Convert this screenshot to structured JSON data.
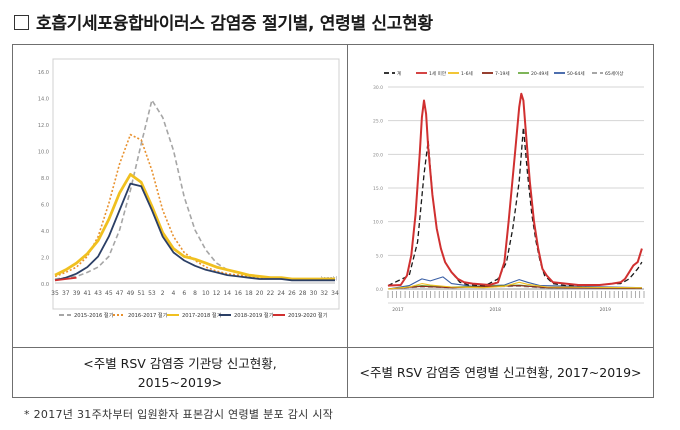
{
  "title": "호흡기세포융합바이러스 감염증 절기별, 연령별 신고현황",
  "captions": {
    "left_line1": "<주별 RSV 감염증 기관당 신고현황,",
    "left_line2": "2015~2019>",
    "right": "<주별 RSV 감염증 연령별 신고현황, 2017~2019>"
  },
  "footnote": "* 2017년 31주차부터 입원환자 표본감시 연령별 분포 감시 시작",
  "colors": {
    "border": "#6f6f6f"
  },
  "chart_data": [
    {
      "type": "line",
      "categories": [
        "35",
        "37",
        "39",
        "41",
        "43",
        "45",
        "47",
        "49",
        "51",
        "53",
        "2",
        "4",
        "6",
        "8",
        "10",
        "12",
        "14",
        "16",
        "18",
        "20",
        "22",
        "24",
        "26",
        "28",
        "30",
        "32",
        "34"
      ],
      "yticks": [
        "16.0",
        "14.0",
        "12.0",
        "10.0",
        "8.0",
        "6.0",
        "4.0",
        "2.0",
        "0.0"
      ],
      "ylim": [
        0,
        16
      ],
      "xunit": "(week)",
      "series": [
        {
          "name": "2015-2016 절기",
          "color": "#a6a6a6",
          "style": "dashed",
          "values": [
            0.3,
            0.4,
            0.5,
            0.8,
            1.2,
            2.0,
            4.0,
            7.0,
            10.5,
            13.8,
            12.5,
            10.0,
            6.5,
            4.0,
            2.5,
            1.5,
            1.0,
            0.8,
            0.6,
            0.5,
            0.4,
            0.3,
            0.3,
            0.3,
            0.3,
            0.3,
            0.3
          ]
        },
        {
          "name": "2016-2017 절기",
          "color": "#e8912e",
          "style": "dotted",
          "values": [
            0.5,
            0.8,
            1.2,
            2.0,
            3.5,
            6.0,
            9.0,
            11.2,
            10.8,
            8.5,
            5.5,
            3.5,
            2.3,
            1.7,
            1.2,
            0.9,
            0.7,
            0.6,
            0.5,
            0.4,
            0.4,
            0.3,
            0.3,
            0.3,
            0.3,
            0.3,
            0.3
          ]
        },
        {
          "name": "2017-2018 절기",
          "color": "#f0c020",
          "style": "solid",
          "values": [
            0.6,
            1.0,
            1.5,
            2.2,
            3.2,
            4.8,
            6.8,
            8.2,
            7.6,
            5.8,
            3.8,
            2.6,
            2.0,
            1.8,
            1.5,
            1.2,
            1.0,
            0.8,
            0.6,
            0.5,
            0.4,
            0.4,
            0.3,
            0.3,
            0.3,
            0.3,
            0.3
          ]
        },
        {
          "name": "2018-2019 절기",
          "color": "#2b3f66",
          "style": "solid",
          "values": [
            0.2,
            0.4,
            0.7,
            1.2,
            2.0,
            3.5,
            5.5,
            7.5,
            7.3,
            5.5,
            3.5,
            2.3,
            1.7,
            1.3,
            1.0,
            0.8,
            0.6,
            0.5,
            0.4,
            0.3,
            0.3,
            0.3,
            0.2,
            0.2,
            0.2,
            0.2,
            0.2
          ]
        },
        {
          "name": "2019-2020 절기",
          "color": "#d03030",
          "style": "solid",
          "values": [
            0.2,
            0.3,
            0.4,
            null,
            null,
            null,
            null,
            null,
            null,
            null,
            null,
            null,
            null,
            null,
            null,
            null,
            null,
            null,
            null,
            null,
            null,
            null,
            null,
            null,
            null,
            null,
            null
          ]
        }
      ]
    },
    {
      "type": "line",
      "xlim": [
        0,
        121
      ],
      "yticks": [
        "30.0",
        "25.0",
        "20.0",
        "15.0",
        "10.0",
        "5.0",
        "0.0"
      ],
      "ylim": [
        0,
        30
      ],
      "year_labels": [
        {
          "label": "2017",
          "x": 2
        },
        {
          "label": "2018",
          "x": 48
        },
        {
          "label": "2019",
          "x": 100
        }
      ],
      "series": [
        {
          "name": "계",
          "color": "#1a1a1a",
          "style": "dashed",
          "points": [
            [
              0,
              0.5
            ],
            [
              10,
              2
            ],
            [
              14,
              7
            ],
            [
              17,
              17
            ],
            [
              19,
              22
            ],
            [
              21,
              14
            ],
            [
              23,
              9
            ],
            [
              25,
              6
            ],
            [
              27,
              4
            ],
            [
              30,
              2.5
            ],
            [
              34,
              1
            ],
            [
              38,
              0.6
            ],
            [
              46,
              0.5
            ],
            [
              52,
              1.5
            ],
            [
              56,
              4
            ],
            [
              59,
              9
            ],
            [
              62,
              16
            ],
            [
              64,
              24
            ],
            [
              66,
              17
            ],
            [
              68,
              11
            ],
            [
              70,
              7
            ],
            [
              72,
              4
            ],
            [
              74,
              2
            ],
            [
              78,
              0.8
            ],
            [
              84,
              0.5
            ],
            [
              90,
              0.5
            ],
            [
              100,
              0.6
            ],
            [
              106,
              0.8
            ],
            [
              110,
              0.8
            ],
            [
              114,
              1.5
            ],
            [
              118,
              3
            ],
            [
              120,
              4
            ]
          ]
        },
        {
          "name": "1세 미만",
          "color": "#d03030",
          "style": "solid",
          "points": [
            [
              0,
              0.5
            ],
            [
              6,
              0.6
            ],
            [
              9,
              2
            ],
            [
              11,
              5
            ],
            [
              13,
              11
            ],
            [
              15,
              20
            ],
            [
              16,
              25.5
            ],
            [
              17,
              28
            ],
            [
              18,
              26
            ],
            [
              19,
              21
            ],
            [
              21,
              14
            ],
            [
              23,
              9
            ],
            [
              25,
              6
            ],
            [
              27,
              4
            ],
            [
              30,
              2.5
            ],
            [
              33,
              1.5
            ],
            [
              36,
              1
            ],
            [
              40,
              0.8
            ],
            [
              48,
              0.6
            ],
            [
              52,
              1
            ],
            [
              55,
              4
            ],
            [
              57,
              10
            ],
            [
              60,
              20
            ],
            [
              62,
              27
            ],
            [
              63,
              29
            ],
            [
              64,
              28
            ],
            [
              65,
              24
            ],
            [
              67,
              16
            ],
            [
              69,
              10
            ],
            [
              71,
              6
            ],
            [
              73,
              3
            ],
            [
              75,
              2
            ],
            [
              78,
              1
            ],
            [
              84,
              0.8
            ],
            [
              90,
              0.6
            ],
            [
              100,
              0.6
            ],
            [
              106,
              0.8
            ],
            [
              110,
              1
            ],
            [
              112,
              1.5
            ],
            [
              114,
              2.5
            ],
            [
              116,
              3.5
            ],
            [
              118,
              4
            ],
            [
              120,
              6
            ]
          ]
        },
        {
          "name": "1-6세",
          "color": "#f0c020",
          "style": "solid",
          "points": [
            [
              0,
              0
            ],
            [
              10,
              0.3
            ],
            [
              16,
              0.8
            ],
            [
              20,
              0.6
            ],
            [
              30,
              0.3
            ],
            [
              45,
              0.2
            ],
            [
              55,
              0.4
            ],
            [
              62,
              1.0
            ],
            [
              66,
              0.7
            ],
            [
              75,
              0.3
            ],
            [
              120,
              0.2
            ]
          ]
        },
        {
          "name": "7-19세",
          "color": "#8b2a1a",
          "style": "solid",
          "points": [
            [
              0,
              0
            ],
            [
              16,
              0.4
            ],
            [
              30,
              0.2
            ],
            [
              62,
              0.5
            ],
            [
              75,
              0.2
            ],
            [
              120,
              0.1
            ]
          ]
        },
        {
          "name": "20-49세",
          "color": "#70ad47",
          "style": "solid",
          "points": [
            [
              0,
              0
            ],
            [
              16,
              0.5
            ],
            [
              30,
              0.3
            ],
            [
              62,
              0.6
            ],
            [
              75,
              0.2
            ],
            [
              120,
              0.1
            ]
          ]
        },
        {
          "name": "50-64세",
          "color": "#3a5fa5",
          "style": "solid",
          "points": [
            [
              0,
              0
            ],
            [
              10,
              0.5
            ],
            [
              16,
              1.5
            ],
            [
              20,
              1.2
            ],
            [
              26,
              1.8
            ],
            [
              30,
              0.8
            ],
            [
              40,
              0.4
            ],
            [
              55,
              0.6
            ],
            [
              62,
              1.4
            ],
            [
              66,
              1.0
            ],
            [
              72,
              0.5
            ],
            [
              120,
              0.2
            ]
          ]
        },
        {
          "name": "65세이상",
          "color": "#9a9a9a",
          "style": "dashed",
          "points": [
            [
              0,
              0
            ],
            [
              16,
              0.3
            ],
            [
              30,
              0.2
            ],
            [
              62,
              0.4
            ],
            [
              75,
              0.1
            ],
            [
              120,
              0.1
            ]
          ]
        }
      ]
    }
  ]
}
